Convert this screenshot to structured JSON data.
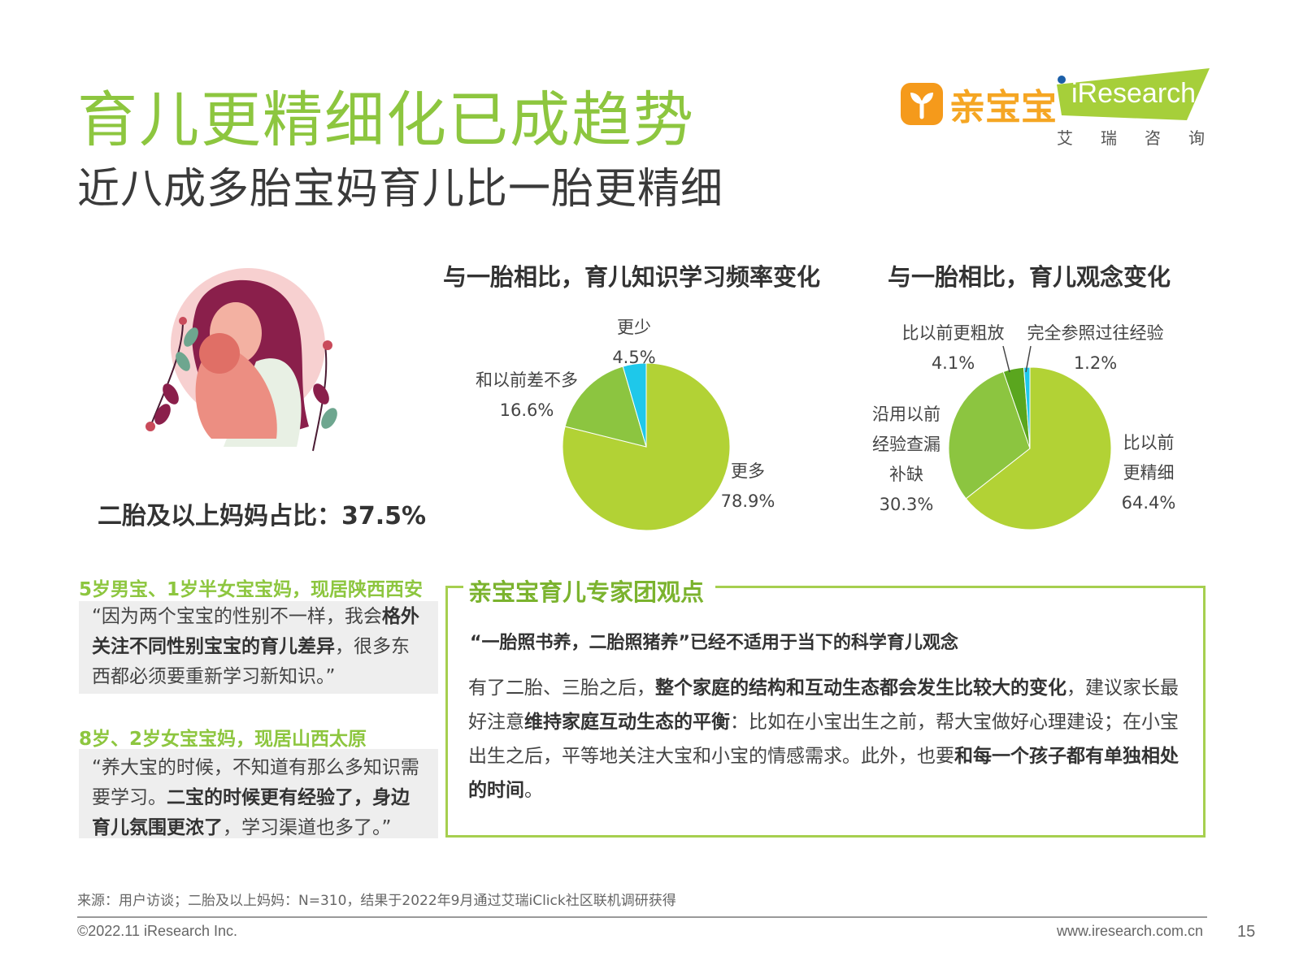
{
  "header": {
    "title": "育儿更精细化已成趋势",
    "subtitle": "近八成多胎宝妈育儿比一胎更精细",
    "logo_qbb": "亲宝宝",
    "logo_iresearch": "iResearch",
    "logo_iresearch_cn": "艾瑞咨询"
  },
  "left": {
    "share_text": "二胎及以上妈妈占比：37.5%"
  },
  "chart_data": [
    {
      "type": "pie",
      "title": "与一胎相比，育儿知识学习频率变化",
      "slices": [
        {
          "label": "更多",
          "value": 78.9,
          "value_text": "78.9%",
          "color": "#b2d235"
        },
        {
          "label": "和以前差不多",
          "value": 16.6,
          "value_text": "16.6%",
          "color": "#8cc540"
        },
        {
          "label": "更少",
          "value": 4.5,
          "value_text": "4.5%",
          "color": "#1ec8ea"
        }
      ]
    },
    {
      "type": "pie",
      "title": "与一胎相比，育儿观念变化",
      "slices": [
        {
          "label": "比以前更精细",
          "label_lines": [
            "比以前",
            "更精细"
          ],
          "value": 64.4,
          "value_text": "64.4%",
          "color": "#b2d235"
        },
        {
          "label": "沿用以前经验查漏补缺",
          "label_lines": [
            "沿用以前",
            "经验查漏",
            "补缺"
          ],
          "value": 30.3,
          "value_text": "30.3%",
          "color": "#8cc540"
        },
        {
          "label": "比以前更粗放",
          "value": 4.1,
          "value_text": "4.1%",
          "color": "#5aa61e"
        },
        {
          "label": "完全参照过往经验",
          "value": 1.2,
          "value_text": "1.2%",
          "color": "#1ec8ea"
        }
      ]
    }
  ],
  "quotes": [
    {
      "head": "5岁男宝、1岁半女宝宝妈，现居陕西西安",
      "p1": "“因为两个宝宝的性别不一样，我会",
      "b1": "格外关注不同性别宝宝的育儿差异",
      "p2": "，很多东西都必须要重新学习新知识。”"
    },
    {
      "head": "8岁、2岁女宝宝妈，现居山西太原",
      "p1": "“养大宝的时候，不知道有那么多知识需要学习。",
      "b1": "二宝的时候更有经验了，身边育儿氛围更浓了",
      "p2": "，学习渠道也多了。”"
    }
  ],
  "expert": {
    "title": "亲宝宝育儿专家团观点",
    "subtitle": "“一胎照书养，二胎照猪养”已经不适用于当下的科学育儿观念",
    "t1": "有了二胎、三胎之后，",
    "b1": "整个家庭的结构和互动生态都会发生比较大的变化",
    "t2": "，建议家长最好注意",
    "b2": "维持家庭互动生态的平衡",
    "t3": "：比如在小宝出生之前，帮大宝做好心理建设；在小宝出生之后，平等地关注大宝和小宝的情感需求。此外，也要",
    "b3": "和每一个孩子都有单独相处的时间",
    "t4": "。"
  },
  "footer": {
    "source": "来源：用户访谈；二胎及以上妈妈：N=310，结果于2022年9月通过艾瑞iClick社区联机调研获得",
    "copyright": "©2022.11 iResearch Inc.",
    "website": "www.iresearch.com.cn",
    "page_number": "15"
  }
}
